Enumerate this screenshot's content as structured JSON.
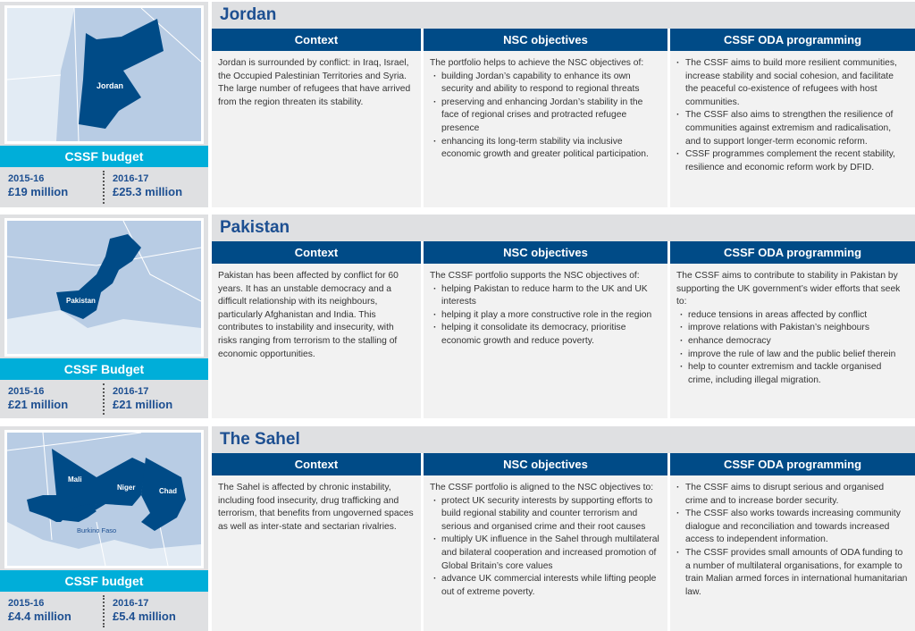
{
  "column_headers": {
    "context": "Context",
    "nsc": "NSC objectives",
    "oda": "CSSF ODA programming"
  },
  "colors": {
    "title_blue": "#1d4f91",
    "header_navy": "#004b87",
    "budget_cyan": "#00aed9",
    "map_country": "#004b87",
    "map_bg": "#b8cce4"
  },
  "sections": [
    {
      "title": "Jordan",
      "map_labels": [
        "Jordan"
      ],
      "budget": {
        "title": "CSSF budget",
        "y1": "2015-16",
        "a1": "£19 million",
        "y2": "2016-17",
        "a2": "£25.3 million"
      },
      "context": "Jordan is surrounded by conflict: in Iraq, Israel, the Occupied Palestinian Territories and Syria. The large number of refugees that have arrived from the region threaten its stability.",
      "nsc_intro": "The portfolio helps to achieve the NSC objectives of:",
      "nsc_items": [
        "building Jordan’s capability to enhance its own security and ability to respond to regional threats",
        "preserving and enhancing Jordan’s stability in the face of regional crises and protracted refugee presence",
        "enhancing its long-term stability via inclusive economic growth and greater political participation."
      ],
      "oda_intro": "",
      "oda_items": [
        "The CSSF aims to build more resilient communities, increase stability and social cohesion, and facilitate the peaceful co-existence of refugees with host communities.",
        "The CSSF also aims to strengthen the resilience of communities against extremism and radicalisation, and to support longer-term economic reform.",
        "CSSF programmes complement the recent stability, resilience and economic reform work by DFID."
      ]
    },
    {
      "title": "Pakistan",
      "map_labels": [
        "Pakistan"
      ],
      "budget": {
        "title": "CSSF Budget",
        "y1": "2015-16",
        "a1": "£21 million",
        "y2": "2016-17",
        "a2": "£21 million"
      },
      "context": "Pakistan has been affected by conflict for 60 years. It has an unstable democracy and a difficult relationship with its neighbours, particularly Afghanistan and India. This contributes to instability and insecurity, with risks ranging from terrorism to the stalling of economic opportunities.",
      "nsc_intro": "The CSSF portfolio supports the NSC objectives of:",
      "nsc_items": [
        "helping Pakistan to reduce harm to the UK and UK interests",
        "helping it play a more constructive role in the region",
        "helping it consolidate its democracy, prioritise economic growth and reduce poverty."
      ],
      "oda_intro": "The CSSF aims to contribute to stability in Pakistan by supporting the UK government’s wider efforts that seek to:",
      "oda_items": [
        "reduce tensions in areas affected by conflict",
        "improve relations with Pakistan’s neighbours",
        "enhance democracy",
        "improve the rule of law and the public belief therein",
        "help to counter extremism and tackle organised crime, including illegal migration."
      ]
    },
    {
      "title": "The Sahel",
      "map_labels": [
        "Mali",
        "Niger",
        "Chad",
        "Burkino Faso"
      ],
      "budget": {
        "title": "CSSF budget",
        "y1": "2015-16",
        "a1": "£4.4 million",
        "y2": "2016-17",
        "a2": "£5.4 million"
      },
      "context": "The Sahel is affected by chronic instability, including food insecurity, drug trafficking and terrorism, that benefits from ungoverned spaces as well as inter-state and sectarian rivalries.",
      "nsc_intro": "The CSSF portfolio is aligned to the NSC objectives to:",
      "nsc_items": [
        "protect UK security interests by supporting efforts to build regional stability and counter terrorism and serious and organised crime and their root causes",
        "multiply UK influence in the Sahel through multilateral and bilateral cooperation and increased promotion of Global Britain’s core values",
        "advance UK commercial interests while lifting people out of extreme poverty."
      ],
      "oda_intro": "",
      "oda_items": [
        "The CSSF aims to disrupt serious and organised crime and to increase border security.",
        "The CSSF also works towards increasing community dialogue and reconciliation and towards increased access to independent information.",
        "The CSSF provides small amounts of ODA funding to a number of multilateral organisations, for example to train Malian armed forces in international humanitarian law."
      ]
    }
  ]
}
